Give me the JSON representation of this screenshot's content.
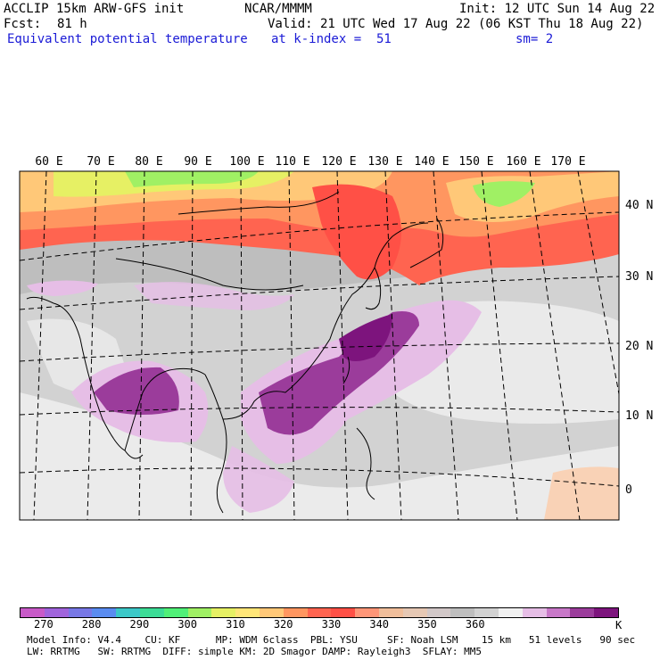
{
  "header": {
    "model": "ACCLIP 15km ARW-GFS init",
    "center": "NCAR/MMMM",
    "init": "Init: 12 UTC Sun 14 Aug 22",
    "fcst_label": "Fcst:",
    "fcst_value": "81 h",
    "valid": "Valid: 21 UTC Wed 17 Aug 22 (06 KST Thu 18 Aug 22)",
    "field": "Equivalent potential temperature",
    "level": "at k-index =  51",
    "smooth": "sm= 2"
  },
  "map": {
    "lon_labels": [
      "60 E",
      "70 E",
      "80 E",
      "90 E",
      "100 E",
      "110 E",
      "120 E",
      "130 E",
      "140 E",
      "150 E",
      "160 E",
      "170 E"
    ],
    "lat_labels": [
      "40 N",
      "30 N",
      "20 N",
      "10 N",
      "0"
    ]
  },
  "colorbar": {
    "colors": [
      "#c85ac8",
      "#a064dc",
      "#7878e6",
      "#5a8cf0",
      "#3cc8c8",
      "#3cdc96",
      "#50f078",
      "#a0f064",
      "#e6f064",
      "#ffe678",
      "#ffc878",
      "#ff9660",
      "#ff6450",
      "#ff5046",
      "#ff9678",
      "#f0be9b",
      "#e6c8b4",
      "#d2c8c8",
      "#bebebe",
      "#d2d2d2",
      "#f0f0f0",
      "#e6bee6",
      "#c878c8",
      "#9b3c9b",
      "#7d147d"
    ],
    "ticks": [
      "270",
      "280",
      "290",
      "300",
      "310",
      "320",
      "330",
      "340",
      "350",
      "360"
    ],
    "unit": "K"
  },
  "footer": {
    "line1": "Model Info: V4.4    CU: KF      MP: WDM 6class  PBL: YSU     SF: Noah LSM    15 km   51 levels   90 sec",
    "line2": "LW: RRTMG   SW: RRTMG  DIFF: simple KM: 2D Smagor DAMP: Rayleigh3  SFLAY: MM5"
  }
}
